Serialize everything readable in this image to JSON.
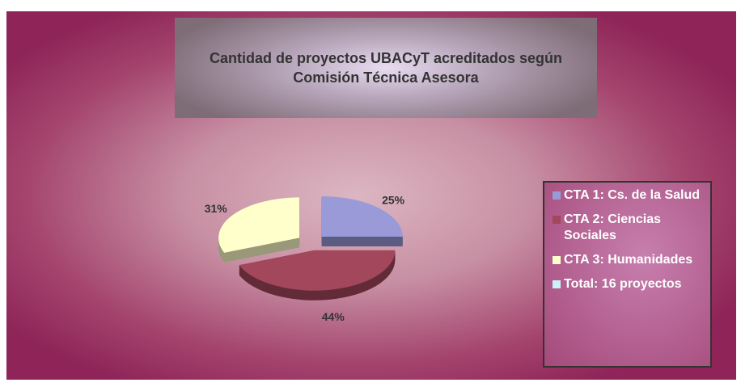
{
  "chart_data": {
    "type": "pie",
    "title": "Cantidad de proyectos UBACyT acreditados según Comisión Técnica Asesora",
    "categories": [
      "CTA 1: Cs. de la Salud",
      "CTA 2: Ciencias Sociales",
      "CTA 3: Humanidades"
    ],
    "values": [
      25,
      44,
      31
    ],
    "value_labels": [
      "25%",
      "44%",
      "31%"
    ],
    "colors": [
      "#9a9ad8",
      "#a3475c",
      "#ffffcc"
    ],
    "legend_note": {
      "text": "Total: 16 proyectos",
      "color": "#ccf0f8"
    },
    "legend": "right"
  }
}
